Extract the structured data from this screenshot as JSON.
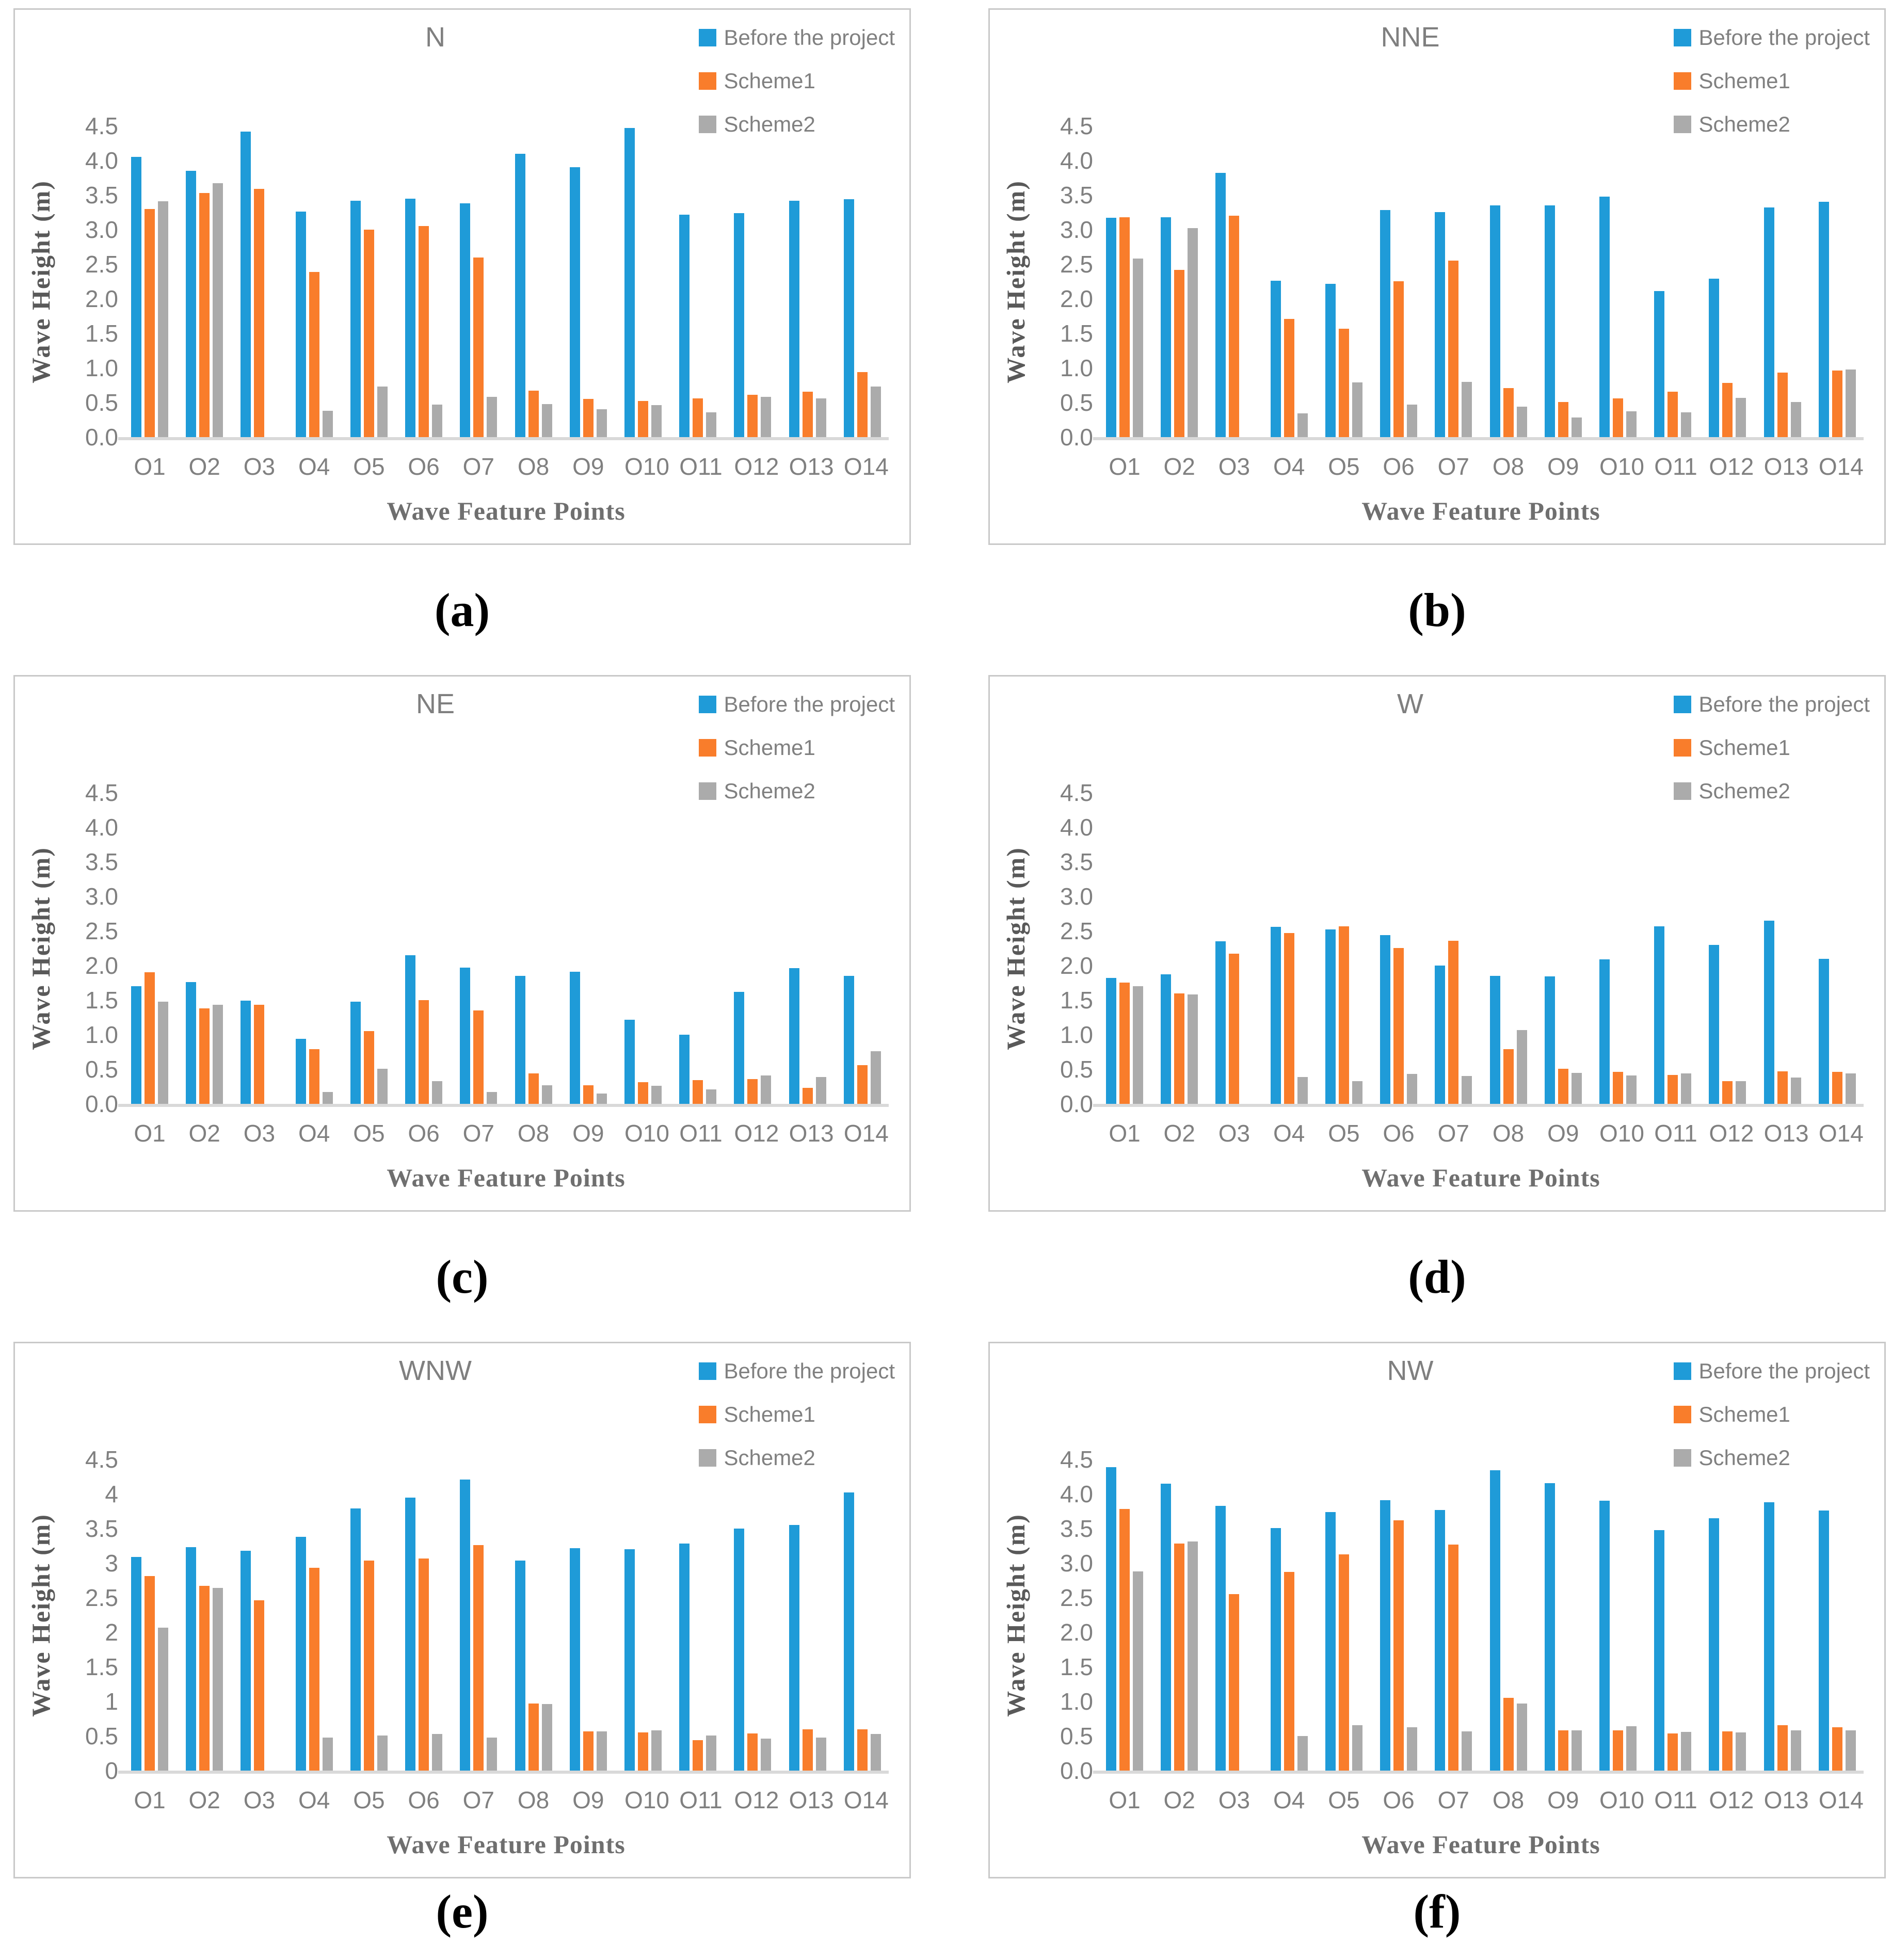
{
  "figure_type": "six-panel grouped bar charts of wave heights by direction",
  "shared": {
    "ylabel": "Wave Height (m)",
    "xlabel": "Wave Feature Points",
    "colors": {
      "before": "#1f9bd8",
      "scheme1": "#f97d2b",
      "scheme2": "#ababab"
    }
  },
  "chart_data": [
    {
      "type": "bar",
      "title": "N",
      "panel_label": "(a)",
      "xlabel": "Wave Feature Points",
      "ylabel": "Wave Height (m)",
      "ylim": [
        0,
        4.5
      ],
      "grid": false,
      "legend_position": "top-right",
      "legend": [
        "Before the project",
        "Scheme1",
        "Scheme2"
      ],
      "categories": [
        "O1",
        "O2",
        "O3",
        "O4",
        "O5",
        "O6",
        "O7",
        "O8",
        "O9",
        "O10",
        "O11",
        "O12",
        "O13",
        "O14"
      ],
      "yticklabels": [
        "0.0",
        "0.5",
        "1.0",
        "1.5",
        "2.0",
        "2.5",
        "3.0",
        "3.5",
        "4.0",
        "4.5"
      ],
      "series": [
        {
          "name": "Before the project",
          "color": "#1f9bd8",
          "values": [
            4.05,
            3.85,
            4.42,
            3.26,
            3.42,
            3.45,
            3.38,
            4.1,
            3.9,
            4.47,
            3.22,
            3.24,
            3.42,
            3.44
          ]
        },
        {
          "name": "Scheme1",
          "color": "#f97d2b",
          "values": [
            3.3,
            3.53,
            3.59,
            2.39,
            3.0,
            3.05,
            2.6,
            0.67,
            0.55,
            0.52,
            0.56,
            0.61,
            0.66,
            0.94
          ]
        },
        {
          "name": "Scheme2",
          "color": "#ababab",
          "values": [
            3.41,
            3.67,
            0,
            0.38,
            0.73,
            0.47,
            0.58,
            0.48,
            0.4,
            0.46,
            0.36,
            0.58,
            0.56,
            0.73
          ]
        }
      ]
    },
    {
      "type": "bar",
      "title": "NNE",
      "panel_label": "(b)",
      "xlabel": "Wave Feature Points",
      "ylabel": "Wave Height (m)",
      "ylim": [
        0,
        4.5
      ],
      "grid": false,
      "legend_position": "top-right",
      "legend": [
        "Before the project",
        "Scheme1",
        "Scheme2"
      ],
      "categories": [
        "O1",
        "O2",
        "O3",
        "O4",
        "O5",
        "O6",
        "O7",
        "O8",
        "O9",
        "O10",
        "O11",
        "O12",
        "O13",
        "O14"
      ],
      "yticklabels": [
        "0.0",
        "0.5",
        "1.0",
        "1.5",
        "2.0",
        "2.5",
        "3.0",
        "3.5",
        "4.0",
        "4.5"
      ],
      "series": [
        {
          "name": "Before the project",
          "color": "#1f9bd8",
          "values": [
            3.17,
            3.18,
            3.82,
            2.26,
            2.22,
            3.28,
            3.25,
            3.35,
            3.35,
            3.48,
            2.11,
            2.29,
            3.32,
            3.4
          ]
        },
        {
          "name": "Scheme1",
          "color": "#f97d2b",
          "values": [
            3.18,
            2.42,
            3.2,
            1.71,
            1.57,
            2.25,
            2.55,
            0.71,
            0.51,
            0.56,
            0.66,
            0.78,
            0.93,
            0.96
          ]
        },
        {
          "name": "Scheme2",
          "color": "#ababab",
          "values": [
            2.58,
            3.02,
            0,
            0.34,
            0.79,
            0.47,
            0.8,
            0.44,
            0.28,
            0.37,
            0.36,
            0.57,
            0.51,
            0.98
          ]
        }
      ]
    },
    {
      "type": "bar",
      "title": "NE",
      "panel_label": "(c)",
      "xlabel": "Wave Feature Points",
      "ylabel": "Wave Height (m)",
      "ylim": [
        0,
        4.5
      ],
      "grid": false,
      "legend_position": "top-right",
      "legend": [
        "Before the project",
        "Scheme1",
        "Scheme2"
      ],
      "categories": [
        "O1",
        "O2",
        "O3",
        "O4",
        "O5",
        "O6",
        "O7",
        "O8",
        "O9",
        "O10",
        "O11",
        "O12",
        "O13",
        "O14"
      ],
      "yticklabels": [
        "0.0",
        "0.5",
        "1.0",
        "1.5",
        "2.0",
        "2.5",
        "3.0",
        "3.5",
        "4.0",
        "4.5"
      ],
      "series": [
        {
          "name": "Before the project",
          "color": "#1f9bd8",
          "values": [
            1.7,
            1.76,
            1.49,
            0.94,
            1.48,
            2.15,
            1.97,
            1.85,
            1.91,
            1.22,
            1.0,
            1.62,
            1.96,
            1.85
          ]
        },
        {
          "name": "Scheme1",
          "color": "#f97d2b",
          "values": [
            1.9,
            1.38,
            1.43,
            0.79,
            1.05,
            1.5,
            1.35,
            0.44,
            0.27,
            0.31,
            0.34,
            0.36,
            0.23,
            0.56
          ]
        },
        {
          "name": "Scheme2",
          "color": "#ababab",
          "values": [
            1.48,
            1.43,
            0,
            0.17,
            0.51,
            0.33,
            0.17,
            0.27,
            0.15,
            0.26,
            0.21,
            0.41,
            0.39,
            0.76
          ]
        }
      ]
    },
    {
      "type": "bar",
      "title": "W",
      "panel_label": "(d)",
      "xlabel": "Wave Feature Points",
      "ylabel": "Wave Height (m)",
      "ylim": [
        0,
        4.5
      ],
      "grid": false,
      "legend_position": "top-right",
      "legend": [
        "Before the project",
        "Scheme1",
        "Scheme2"
      ],
      "categories": [
        "O1",
        "O2",
        "O3",
        "O4",
        "O5",
        "O6",
        "O7",
        "O8",
        "O9",
        "O10",
        "O11",
        "O12",
        "O13",
        "O14"
      ],
      "yticklabels": [
        "0.0",
        "0.5",
        "1.0",
        "1.5",
        "2.0",
        "2.5",
        "3.0",
        "3.5",
        "4.0",
        "4.5"
      ],
      "series": [
        {
          "name": "Before the project",
          "color": "#1f9bd8",
          "values": [
            1.82,
            1.87,
            2.35,
            2.56,
            2.52,
            2.44,
            2.0,
            1.85,
            1.84,
            2.09,
            2.57,
            2.3,
            2.65,
            2.1
          ]
        },
        {
          "name": "Scheme1",
          "color": "#f97d2b",
          "values": [
            1.75,
            1.6,
            2.17,
            2.47,
            2.57,
            2.25,
            2.36,
            0.79,
            0.51,
            0.46,
            0.42,
            0.33,
            0.47,
            0.46
          ]
        },
        {
          "name": "Scheme2",
          "color": "#ababab",
          "values": [
            1.7,
            1.58,
            0,
            0.39,
            0.33,
            0.43,
            0.4,
            1.07,
            0.45,
            0.41,
            0.44,
            0.33,
            0.38,
            0.44
          ]
        }
      ]
    },
    {
      "type": "bar",
      "title": "WNW",
      "panel_label": "(e)",
      "xlabel": "Wave Feature Points",
      "ylabel": "Wave Height (m)",
      "ylim": [
        0,
        4.5
      ],
      "grid": false,
      "legend_position": "top-right",
      "legend": [
        "Before the project",
        "Scheme1",
        "Scheme2"
      ],
      "categories": [
        "O1",
        "O2",
        "O3",
        "O4",
        "O5",
        "O6",
        "O7",
        "O8",
        "O9",
        "O10",
        "O11",
        "O12",
        "O13",
        "O14"
      ],
      "yticklabels": [
        "0",
        "0.5",
        "1",
        "1.5",
        "2",
        "2.5",
        "3",
        "3.5",
        "4",
        "4.5"
      ],
      "series": [
        {
          "name": "Before the project",
          "color": "#1f9bd8",
          "values": [
            3.09,
            3.23,
            3.18,
            3.38,
            3.79,
            3.95,
            4.21,
            3.04,
            3.22,
            3.2,
            3.28,
            3.5,
            3.55,
            4.02
          ]
        },
        {
          "name": "Scheme1",
          "color": "#f97d2b",
          "values": [
            2.81,
            2.67,
            2.46,
            2.93,
            3.04,
            3.07,
            3.26,
            0.97,
            0.57,
            0.55,
            0.44,
            0.54,
            0.6,
            0.6
          ]
        },
        {
          "name": "Scheme2",
          "color": "#ababab",
          "values": [
            2.07,
            2.64,
            0,
            0.48,
            0.51,
            0.53,
            0.48,
            0.96,
            0.57,
            0.58,
            0.51,
            0.46,
            0.48,
            0.53
          ]
        }
      ]
    },
    {
      "type": "bar",
      "title": "NW",
      "panel_label": "(f)",
      "xlabel": "Wave Feature Points",
      "ylabel": "Wave Height (m)",
      "ylim": [
        0,
        4.5
      ],
      "grid": false,
      "legend_position": "top-right",
      "legend": [
        "Before the project",
        "Scheme1",
        "Scheme2"
      ],
      "categories": [
        "O1",
        "O2",
        "O3",
        "O4",
        "O5",
        "O6",
        "O7",
        "O8",
        "O9",
        "O10",
        "O11",
        "O12",
        "O13",
        "O14"
      ],
      "yticklabels": [
        "0.0",
        "0.5",
        "1.0",
        "1.5",
        "2.0",
        "2.5",
        "3.0",
        "3.5",
        "4.0",
        "4.5"
      ],
      "series": [
        {
          "name": "Before the project",
          "color": "#1f9bd8",
          "values": [
            4.39,
            4.15,
            3.83,
            3.51,
            3.74,
            3.91,
            3.77,
            4.34,
            4.16,
            3.9,
            3.48,
            3.65,
            3.88,
            3.76
          ]
        },
        {
          "name": "Scheme1",
          "color": "#f97d2b",
          "values": [
            3.78,
            3.28,
            2.55,
            2.87,
            3.13,
            3.62,
            3.27,
            1.05,
            0.58,
            0.58,
            0.54,
            0.57,
            0.66,
            0.63
          ]
        },
        {
          "name": "Scheme2",
          "color": "#ababab",
          "values": [
            2.88,
            3.31,
            0,
            0.5,
            0.66,
            0.63,
            0.57,
            0.97,
            0.58,
            0.64,
            0.56,
            0.55,
            0.58,
            0.58
          ]
        }
      ]
    }
  ]
}
